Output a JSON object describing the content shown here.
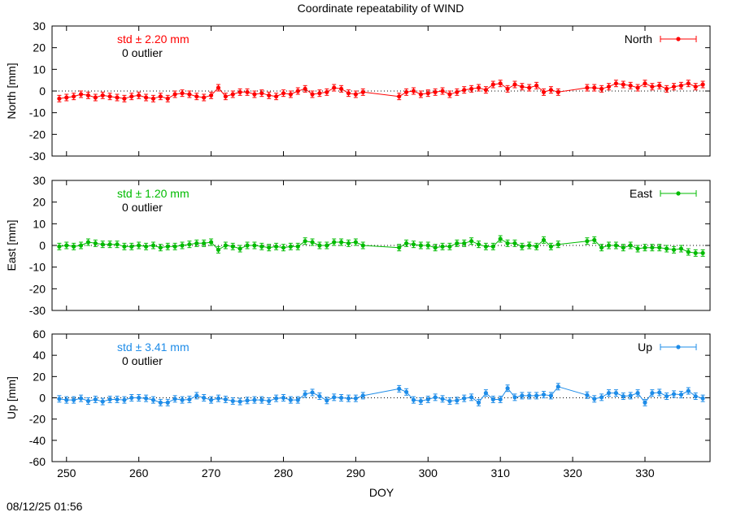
{
  "title": "Coordinate repeatability of WIND",
  "xlabel": "DOY",
  "timestamp": "08/12/25 01:56",
  "x_ticks": [
    250,
    260,
    270,
    280,
    290,
    300,
    310,
    320,
    330
  ],
  "x_range": [
    248,
    339
  ],
  "chart_data": [
    {
      "type": "line",
      "component": "North",
      "ylabel": "North [mm]",
      "ylim": [
        -30,
        30
      ],
      "y_ticks": [
        30,
        20,
        10,
        0,
        -10,
        -20,
        -30
      ],
      "color": "#ff0000",
      "std_text": "std ± 2.20 mm",
      "outlier_text": "0 outlier",
      "legend": "North",
      "legend_position": "top-right",
      "error_bars": true,
      "zero_line": "dotted",
      "x": [
        249,
        250,
        251,
        252,
        253,
        254,
        255,
        256,
        257,
        258,
        259,
        260,
        261,
        262,
        263,
        264,
        265,
        266,
        267,
        268,
        269,
        270,
        271,
        272,
        273,
        274,
        275,
        276,
        277,
        278,
        279,
        280,
        281,
        282,
        283,
        284,
        285,
        286,
        287,
        288,
        289,
        290,
        291,
        296,
        297,
        298,
        299,
        300,
        301,
        302,
        303,
        304,
        305,
        306,
        307,
        308,
        309,
        310,
        311,
        312,
        313,
        314,
        315,
        316,
        317,
        318,
        322,
        323,
        324,
        325,
        326,
        327,
        328,
        329,
        330,
        331,
        332,
        333,
        334,
        335,
        336,
        337,
        338
      ],
      "y": [
        -3.5,
        -3,
        -2.5,
        -1.5,
        -2,
        -3,
        -2,
        -2.5,
        -3,
        -3.5,
        -2.5,
        -2,
        -3,
        -3.5,
        -2.5,
        -3.5,
        -1.5,
        -1,
        -1.5,
        -2.5,
        -3,
        -2,
        1.5,
        -2.5,
        -1.5,
        -0.5,
        -0.5,
        -1.5,
        -1,
        -2,
        -2.5,
        -1,
        -1.5,
        0,
        1,
        -1.5,
        -1,
        -0.5,
        1.5,
        1,
        -1,
        -1.5,
        -0.5,
        -2.5,
        -0.5,
        0,
        -1.5,
        -1,
        -0.5,
        0,
        -1.5,
        -0.5,
        0.5,
        1,
        1.5,
        0.5,
        3,
        3.5,
        1,
        3,
        2,
        1.5,
        2.5,
        -0.5,
        0.5,
        -0.5,
        1.5,
        1.5,
        1,
        2,
        3.5,
        3,
        2.5,
        1.5,
        3.5,
        2,
        2.5,
        1,
        2,
        2.5,
        3.5,
        2,
        3
      ]
    },
    {
      "type": "line",
      "component": "East",
      "ylabel": "East [mm]",
      "ylim": [
        -30,
        30
      ],
      "y_ticks": [
        30,
        20,
        10,
        0,
        -10,
        -20,
        -30
      ],
      "color": "#00bb00",
      "std_text": "std ± 1.20 mm",
      "outlier_text": "0 outlier",
      "legend": "East",
      "legend_position": "top-right",
      "error_bars": true,
      "zero_line": "dotted",
      "x": [
        249,
        250,
        251,
        252,
        253,
        254,
        255,
        256,
        257,
        258,
        259,
        260,
        261,
        262,
        263,
        264,
        265,
        266,
        267,
        268,
        269,
        270,
        271,
        272,
        273,
        274,
        275,
        276,
        277,
        278,
        279,
        280,
        281,
        282,
        283,
        284,
        285,
        286,
        287,
        288,
        289,
        290,
        291,
        296,
        297,
        298,
        299,
        300,
        301,
        302,
        303,
        304,
        305,
        306,
        307,
        308,
        309,
        310,
        311,
        312,
        313,
        314,
        315,
        316,
        317,
        318,
        322,
        323,
        324,
        325,
        326,
        327,
        328,
        329,
        330,
        331,
        332,
        333,
        334,
        335,
        336,
        337,
        338
      ],
      "y": [
        -0.5,
        0,
        -0.5,
        0,
        1.5,
        1,
        0.5,
        0.5,
        0.5,
        -0.5,
        -0.5,
        0,
        -0.5,
        0,
        -1,
        -0.5,
        -0.5,
        0,
        0.5,
        1,
        1,
        1.5,
        -2,
        0,
        -0.5,
        -1.5,
        0,
        0,
        -0.5,
        -1,
        -0.5,
        -1,
        -0.5,
        -0.5,
        2,
        1.5,
        0,
        0,
        1.5,
        1.5,
        1,
        1.5,
        0,
        -1,
        1,
        0.5,
        0,
        0,
        -1,
        -0.5,
        -0.5,
        1,
        1,
        2,
        0.5,
        -0.5,
        -0.5,
        3,
        1,
        1,
        -0.5,
        0,
        -0.5,
        2.5,
        -0.5,
        0.5,
        2,
        2.5,
        -1,
        0,
        0,
        -1,
        0,
        -1.5,
        -1,
        -1,
        -1,
        -1.5,
        -2,
        -1.5,
        -3,
        -3.5,
        -3.5
      ]
    },
    {
      "type": "line",
      "component": "Up",
      "ylabel": "Up [mm]",
      "ylim": [
        -60,
        60
      ],
      "y_ticks": [
        60,
        40,
        20,
        0,
        -20,
        -40,
        -60
      ],
      "color": "#1e8ce8",
      "std_text": "std ± 3.41 mm",
      "outlier_text": "0 outlier",
      "legend": "Up",
      "legend_position": "top-right",
      "error_bars": true,
      "zero_line": "dotted",
      "x": [
        249,
        250,
        251,
        252,
        253,
        254,
        255,
        256,
        257,
        258,
        259,
        260,
        261,
        262,
        263,
        264,
        265,
        266,
        267,
        268,
        269,
        270,
        271,
        272,
        273,
        274,
        275,
        276,
        277,
        278,
        279,
        280,
        281,
        282,
        283,
        284,
        285,
        286,
        287,
        288,
        289,
        290,
        291,
        296,
        297,
        298,
        299,
        300,
        301,
        302,
        303,
        304,
        305,
        306,
        307,
        308,
        309,
        310,
        311,
        312,
        313,
        314,
        315,
        316,
        317,
        318,
        322,
        323,
        324,
        325,
        326,
        327,
        328,
        329,
        330,
        331,
        332,
        333,
        334,
        335,
        336,
        337,
        338
      ],
      "y": [
        -1,
        -2,
        -2,
        -0.5,
        -3,
        -1.5,
        -3.5,
        -1.5,
        -1.5,
        -2,
        0,
        0,
        -0.5,
        -2,
        -4.5,
        -4.5,
        -1,
        -2,
        -1.5,
        2,
        0,
        -2,
        -0.5,
        -1.5,
        -3,
        -3.5,
        -2.5,
        -2,
        -2,
        -3,
        -0.5,
        0,
        -2,
        -2,
        3.5,
        5,
        1.5,
        -2.5,
        0.5,
        0,
        -0.5,
        -0.5,
        2,
        8.5,
        5.5,
        -2,
        -3,
        -1.5,
        0.5,
        -1,
        -3,
        -2.5,
        -0.5,
        0.5,
        -4.5,
        4.5,
        -1.5,
        -1.5,
        9,
        0.5,
        2,
        2,
        2,
        3,
        2,
        10.5,
        2.5,
        -1,
        0.5,
        4.5,
        4.5,
        1.5,
        2,
        4.5,
        -4.5,
        4.5,
        5,
        1.5,
        3.5,
        3,
        6.5,
        1.5,
        -0.5
      ]
    }
  ]
}
